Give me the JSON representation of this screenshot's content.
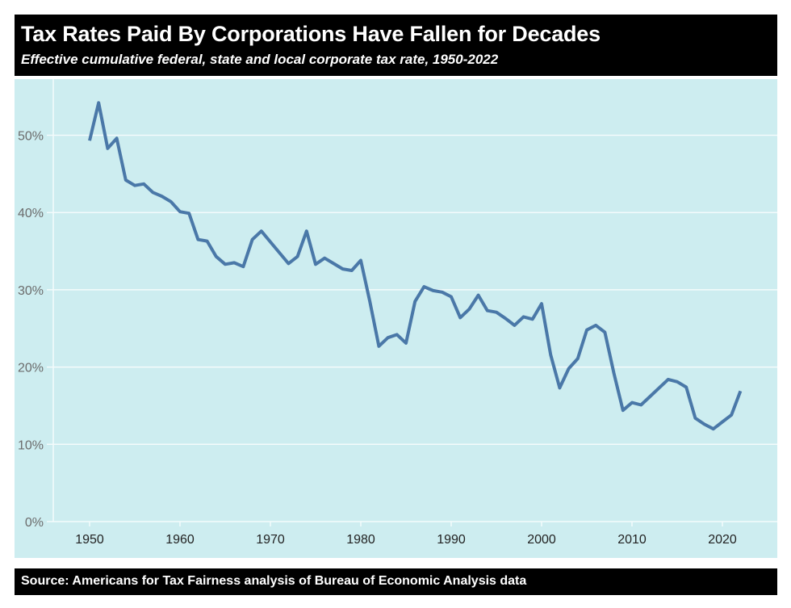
{
  "chart_data": {
    "type": "line",
    "title": "Tax Rates Paid By Corporations Have Fallen for Decades",
    "subtitle": "Effective cumulative federal, state and local corporate tax rate, 1950-2022",
    "source": "Source: Americans for Tax Fairness analysis of Bureau of Economic Analysis data",
    "xlabel": "",
    "ylabel": "",
    "xlim": [
      1946,
      2028
    ],
    "ylim": [
      0,
      55
    ],
    "x_ticks": [
      1950,
      1960,
      1970,
      1980,
      1990,
      2000,
      2010,
      2020
    ],
    "y_ticks": [
      0,
      10,
      20,
      30,
      40,
      50
    ],
    "y_tick_labels": [
      "0%",
      "10%",
      "20%",
      "30%",
      "40%",
      "50%"
    ],
    "x_tick_labels": [
      "1950",
      "1960",
      "1970",
      "1980",
      "1990",
      "2000",
      "2010",
      "2020"
    ],
    "grid": true,
    "legend": "none",
    "colors": {
      "line": "#4a78a8",
      "background": "#cdedf0",
      "grid": "#f4fbfc",
      "bar": "#000000"
    },
    "series": [
      {
        "name": "Effective corporate tax rate (%)",
        "x": [
          1950,
          1951,
          1952,
          1953,
          1954,
          1955,
          1956,
          1957,
          1958,
          1959,
          1960,
          1961,
          1962,
          1963,
          1964,
          1965,
          1966,
          1967,
          1968,
          1969,
          1970,
          1971,
          1972,
          1973,
          1974,
          1975,
          1976,
          1977,
          1978,
          1979,
          1980,
          1981,
          1982,
          1983,
          1984,
          1985,
          1986,
          1987,
          1988,
          1989,
          1990,
          1991,
          1992,
          1993,
          1994,
          1995,
          1996,
          1997,
          1998,
          1999,
          2000,
          2001,
          2002,
          2003,
          2004,
          2005,
          2006,
          2007,
          2008,
          2009,
          2010,
          2011,
          2012,
          2013,
          2014,
          2015,
          2016,
          2017,
          2018,
          2019,
          2020,
          2021,
          2022
        ],
        "values": [
          49.3,
          54.2,
          48.3,
          49.6,
          44.2,
          43.5,
          43.7,
          42.6,
          42.1,
          41.4,
          40.1,
          39.9,
          36.5,
          36.3,
          34.3,
          33.3,
          33.5,
          33.0,
          36.5,
          37.6,
          36.2,
          34.8,
          33.4,
          34.3,
          37.6,
          33.3,
          34.1,
          33.4,
          32.7,
          32.5,
          33.8,
          28.5,
          22.7,
          23.8,
          24.2,
          23.1,
          28.5,
          30.4,
          29.9,
          29.7,
          29.1,
          26.4,
          27.5,
          29.3,
          27.3,
          27.1,
          26.3,
          25.4,
          26.5,
          26.2,
          28.2,
          21.6,
          17.3,
          19.8,
          21.1,
          24.8,
          25.4,
          24.5,
          19.2,
          14.4,
          15.4,
          15.1,
          16.2,
          17.3,
          18.4,
          18.1,
          17.4,
          13.4,
          12.6,
          12.0,
          12.9,
          13.8,
          16.9
        ]
      }
    ]
  }
}
